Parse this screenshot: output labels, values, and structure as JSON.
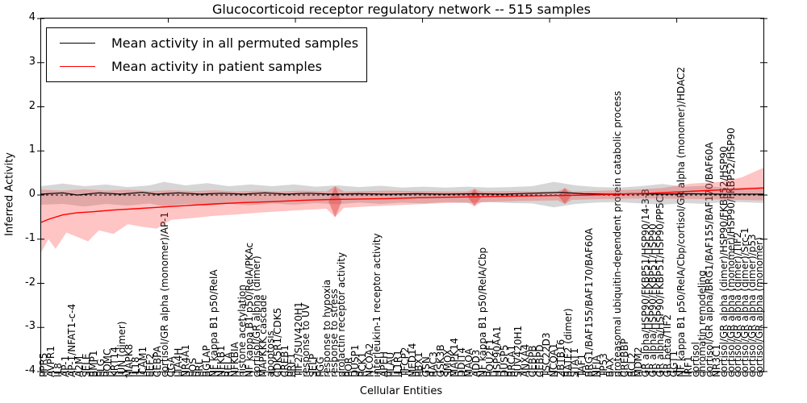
{
  "title": "Glucocorticoid receptor regulatory network -- 515 samples",
  "axes": {
    "ylabel": "Inferred Activity",
    "xlabel": "Cellular Entities",
    "yticks": [
      4,
      3,
      2,
      1,
      0,
      -1,
      -2,
      -3,
      -4
    ],
    "ylim": [
      -4,
      4
    ]
  },
  "legend": {
    "items": [
      {
        "label": "Mean activity in all permuted samples",
        "color": "#000000"
      },
      {
        "label": "Mean activity in patient samples",
        "color": "#ff0000"
      }
    ]
  },
  "colors": {
    "permuted_line": "#000000",
    "patient_line": "#ff0000",
    "permuted_band": "rgba(120,120,120,0.30)",
    "patient_band": "rgba(255,60,60,0.30)",
    "diamond": "rgba(225,60,60,0.45)",
    "zero_line": "#000000"
  },
  "chart_data": {
    "type": "line",
    "title": "Glucocorticoid receptor regulatory network -- 515 samples",
    "xlabel": "Cellular Entities",
    "ylabel": "Inferred Activity",
    "ylim": [
      -4,
      4
    ],
    "grid": false,
    "legend_position": "upper left",
    "categories": [
      "PPR5",
      "AVPR1",
      "IL8",
      "AP-1",
      "AP-1/NFAT1-c-4",
      "A2M",
      "SELE",
      "BMP1",
      "FLG",
      "POMC",
      "KRT14",
      "JUN (dimer)",
      "MAPK8",
      "IL18",
      "ICAM1",
      "EEF2",
      "CEBPA",
      "cortisol/GR alpha (monomer)/AP-1",
      "CGA",
      "LTA4H",
      "NR4A1",
      "FOS",
      "PRL",
      "BGLAP",
      "NF kappa B1 p50/RelA",
      "NFKB1",
      "RELA",
      "NFKBIA",
      "histone acetylation",
      "NF kappa B1 p50/RelA/PKAc",
      "cortisol/GR alpha (dimer)",
      "MAPKKK cascade",
      "apoptosis",
      "CDK5R1/CDK5",
      "CREB1",
      "PRF1",
      "TIF2/SUV420H1",
      "response to UV",
      "SELP",
      "FGG",
      "response to hypoxia",
      "response to stress",
      "prolactin receptor activity",
      "POR",
      "DUSP1",
      "PCK1",
      "NCOA2",
      "interleukin-1 receptor activity",
      "APEH",
      "PLAU",
      "IL1R1",
      "TFCP2",
      "MED14",
      "PBX1",
      "GSN",
      "RAC3",
      "GSK3B",
      "SMOX",
      "MAPK14",
      "DDIT4",
      "MAOA",
      "ADD3",
      "NF kappa B1 p50/RelA/Cbp",
      "POU2F1",
      "HSP90AA1",
      "DUSP5",
      "BRCA1",
      "SUV420H1",
      "ANXA4",
      "CEBPB",
      "CEBPD",
      "TSC22D3",
      "NCOA1",
      "ZBTB16",
      "BATF2 (dimer)",
      "STAT1",
      "TAF1",
      "BRG1/BAF155/BAF170/BAF60A",
      "NFIA",
      "TP53",
      "BAX",
      "proteasomal ubiquitin-dependent protein catabolic process",
      "CREBBP",
      "BCL2",
      "MDM2",
      "GR alpha/HSP90/FKBP51/HSP90/14-3-3",
      "GR alpha/HSP90/FKBP51/HSP90",
      "GR alpha/HSP90/FKBP51/HSP90/PP5C",
      "GR beta/TIF2",
      "GGT1",
      "NF kappa B1 p50/RelA/Cbp/cortisol/GR alpha (monomer)/HDAC2",
      "IRF1",
      "cortisol",
      "chromatin remodeling",
      "cortisol/GR alpha/BRG1/BAF155/BAF170/BAF60A",
      "NR3C1",
      "cortisol/GR alpha (dimer)/HSP90/FKBP52/HSP90",
      "cortisol/GR alpha (monomer)/HSP90/FKBP52/HSP90",
      "cortisol/GR alpha (dimer)/TIF2",
      "cortisol/GR alpha (dimer)/Src-1",
      "cortisol/GR alpha (dimer)/p53",
      "cortisol/GR alpha (monomer)"
    ],
    "series": [
      {
        "name": "Mean activity in all permuted samples",
        "color": "#000000",
        "points": [
          [
            0,
            0.02
          ],
          [
            0.03,
            0.05
          ],
          [
            0.05,
            0.0
          ],
          [
            0.08,
            0.05
          ],
          [
            0.11,
            0.02
          ],
          [
            0.14,
            0.06
          ],
          [
            0.16,
            0.02
          ],
          [
            0.19,
            0.05
          ],
          [
            0.22,
            0.02
          ],
          [
            0.25,
            0.04
          ],
          [
            0.28,
            0.02
          ],
          [
            0.31,
            0.05
          ],
          [
            0.34,
            0.02
          ],
          [
            0.37,
            0.04
          ],
          [
            0.4,
            0.02
          ],
          [
            0.44,
            0.03
          ],
          [
            0.48,
            0.02
          ],
          [
            0.52,
            0.03
          ],
          [
            0.56,
            0.02
          ],
          [
            0.6,
            0.03
          ],
          [
            0.64,
            0.02
          ],
          [
            0.68,
            0.04
          ],
          [
            0.72,
            0.06
          ],
          [
            0.75,
            0.03
          ],
          [
            0.78,
            0.02
          ],
          [
            0.82,
            0.03
          ],
          [
            0.86,
            0.02
          ],
          [
            0.9,
            0.03
          ],
          [
            0.94,
            0.02
          ],
          [
            1,
            0.02
          ]
        ]
      },
      {
        "name": "Mean activity in patient samples",
        "color": "#ff0000",
        "points": [
          [
            0,
            -0.62
          ],
          [
            0.01,
            -0.55
          ],
          [
            0.03,
            -0.45
          ],
          [
            0.05,
            -0.4
          ],
          [
            0.07,
            -0.38
          ],
          [
            0.1,
            -0.34
          ],
          [
            0.13,
            -0.31
          ],
          [
            0.16,
            -0.28
          ],
          [
            0.2,
            -0.24
          ],
          [
            0.24,
            -0.2
          ],
          [
            0.28,
            -0.17
          ],
          [
            0.32,
            -0.15
          ],
          [
            0.36,
            -0.12
          ],
          [
            0.4,
            -0.1
          ],
          [
            0.44,
            -0.09
          ],
          [
            0.48,
            -0.08
          ],
          [
            0.52,
            -0.06
          ],
          [
            0.56,
            -0.05
          ],
          [
            0.6,
            -0.04
          ],
          [
            0.64,
            -0.03
          ],
          [
            0.68,
            -0.02
          ],
          [
            0.72,
            -0.01
          ],
          [
            0.76,
            0.0
          ],
          [
            0.8,
            0.02
          ],
          [
            0.84,
            0.04
          ],
          [
            0.88,
            0.07
          ],
          [
            0.92,
            0.1
          ],
          [
            0.96,
            0.13
          ],
          [
            1,
            0.16
          ]
        ]
      }
    ],
    "bands": [
      {
        "name": "permuted-confidence-band",
        "color": "rgba(120,120,120,0.30)",
        "upper": [
          [
            0,
            0.2
          ],
          [
            0.03,
            0.26
          ],
          [
            0.06,
            0.2
          ],
          [
            0.09,
            0.24
          ],
          [
            0.12,
            0.18
          ],
          [
            0.15,
            0.22
          ],
          [
            0.17,
            0.3
          ],
          [
            0.2,
            0.22
          ],
          [
            0.23,
            0.27
          ],
          [
            0.26,
            0.2
          ],
          [
            0.29,
            0.24
          ],
          [
            0.32,
            0.2
          ],
          [
            0.35,
            0.24
          ],
          [
            0.38,
            0.19
          ],
          [
            0.41,
            0.22
          ],
          [
            0.44,
            0.18
          ],
          [
            0.47,
            0.21
          ],
          [
            0.5,
            0.17
          ],
          [
            0.53,
            0.19
          ],
          [
            0.56,
            0.17
          ],
          [
            0.59,
            0.19
          ],
          [
            0.62,
            0.17
          ],
          [
            0.65,
            0.18
          ],
          [
            0.68,
            0.2
          ],
          [
            0.71,
            0.3
          ],
          [
            0.74,
            0.22
          ],
          [
            0.77,
            0.18
          ],
          [
            0.8,
            0.17
          ],
          [
            0.83,
            0.2
          ],
          [
            0.86,
            0.25
          ],
          [
            0.89,
            0.19
          ],
          [
            0.92,
            0.21
          ],
          [
            0.95,
            0.16
          ],
          [
            1,
            0.18
          ]
        ],
        "lower": [
          [
            0,
            -0.22
          ],
          [
            0.03,
            -0.2
          ],
          [
            0.06,
            -0.26
          ],
          [
            0.09,
            -0.2
          ],
          [
            0.12,
            -0.24
          ],
          [
            0.15,
            -0.19
          ],
          [
            0.17,
            -0.26
          ],
          [
            0.2,
            -0.2
          ],
          [
            0.23,
            -0.24
          ],
          [
            0.26,
            -0.2
          ],
          [
            0.29,
            -0.23
          ],
          [
            0.32,
            -0.19
          ],
          [
            0.35,
            -0.22
          ],
          [
            0.38,
            -0.18
          ],
          [
            0.41,
            -0.21
          ],
          [
            0.44,
            -0.17
          ],
          [
            0.47,
            -0.2
          ],
          [
            0.5,
            -0.17
          ],
          [
            0.53,
            -0.19
          ],
          [
            0.56,
            -0.16
          ],
          [
            0.59,
            -0.18
          ],
          [
            0.62,
            -0.16
          ],
          [
            0.65,
            -0.18
          ],
          [
            0.68,
            -0.19
          ],
          [
            0.71,
            -0.28
          ],
          [
            0.74,
            -0.2
          ],
          [
            0.77,
            -0.17
          ],
          [
            0.8,
            -0.16
          ],
          [
            0.83,
            -0.19
          ],
          [
            0.86,
            -0.22
          ],
          [
            0.89,
            -0.18
          ],
          [
            0.92,
            -0.2
          ],
          [
            0.95,
            -0.15
          ],
          [
            1,
            -0.18
          ]
        ]
      },
      {
        "name": "patient-confidence-band",
        "color": "rgba(255,60,60,0.30)",
        "upper": [
          [
            0,
            0.12
          ],
          [
            0.03,
            0.1
          ],
          [
            0.06,
            0.13
          ],
          [
            0.09,
            0.1
          ],
          [
            0.12,
            0.12
          ],
          [
            0.15,
            0.09
          ],
          [
            0.18,
            0.11
          ],
          [
            0.21,
            0.09
          ],
          [
            0.24,
            0.11
          ],
          [
            0.27,
            0.08
          ],
          [
            0.3,
            0.1
          ],
          [
            0.33,
            0.08
          ],
          [
            0.36,
            0.1
          ],
          [
            0.395,
            0.08
          ],
          [
            0.407,
            0.2
          ],
          [
            0.419,
            0.08
          ],
          [
            0.45,
            0.09
          ],
          [
            0.48,
            0.1
          ],
          [
            0.52,
            0.09
          ],
          [
            0.56,
            0.08
          ],
          [
            0.59,
            0.08
          ],
          [
            0.6,
            0.14
          ],
          [
            0.61,
            0.08
          ],
          [
            0.65,
            0.09
          ],
          [
            0.68,
            0.08
          ],
          [
            0.715,
            0.08
          ],
          [
            0.725,
            0.16
          ],
          [
            0.735,
            0.08
          ],
          [
            0.78,
            0.1
          ],
          [
            0.82,
            0.12
          ],
          [
            0.86,
            0.16
          ],
          [
            0.9,
            0.26
          ],
          [
            0.94,
            0.3
          ],
          [
            0.97,
            0.4
          ],
          [
            1,
            0.62
          ]
        ],
        "lower": [
          [
            0,
            -1.3
          ],
          [
            0.01,
            -1.0
          ],
          [
            0.02,
            -1.22
          ],
          [
            0.035,
            -0.85
          ],
          [
            0.05,
            -0.95
          ],
          [
            0.065,
            -1.05
          ],
          [
            0.08,
            -0.8
          ],
          [
            0.1,
            -0.88
          ],
          [
            0.12,
            -0.66
          ],
          [
            0.14,
            -0.72
          ],
          [
            0.16,
            -0.76
          ],
          [
            0.18,
            -0.56
          ],
          [
            0.21,
            -0.52
          ],
          [
            0.24,
            -0.47
          ],
          [
            0.27,
            -0.44
          ],
          [
            0.3,
            -0.4
          ],
          [
            0.33,
            -0.37
          ],
          [
            0.36,
            -0.34
          ],
          [
            0.395,
            -0.31
          ],
          [
            0.407,
            -0.5
          ],
          [
            0.419,
            -0.29
          ],
          [
            0.45,
            -0.26
          ],
          [
            0.48,
            -0.24
          ],
          [
            0.52,
            -0.21
          ],
          [
            0.56,
            -0.18
          ],
          [
            0.59,
            -0.17
          ],
          [
            0.6,
            -0.25
          ],
          [
            0.61,
            -0.16
          ],
          [
            0.65,
            -0.14
          ],
          [
            0.68,
            -0.13
          ],
          [
            0.715,
            -0.12
          ],
          [
            0.725,
            -0.2
          ],
          [
            0.735,
            -0.11
          ],
          [
            0.78,
            -0.09
          ],
          [
            0.82,
            -0.08
          ],
          [
            0.86,
            -0.08
          ],
          [
            0.9,
            -0.09
          ],
          [
            0.94,
            -0.1
          ],
          [
            1,
            -0.12
          ]
        ]
      }
    ],
    "diamonds": [
      {
        "x": 0.407,
        "top": 0.2,
        "bottom": -0.5
      },
      {
        "x": 0.6,
        "top": 0.14,
        "bottom": -0.25
      },
      {
        "x": 0.725,
        "top": 0.16,
        "bottom": -0.2
      }
    ],
    "zero_line": true,
    "xticks_major": [
      0.176,
      0.352,
      0.528,
      0.704,
      0.88
    ]
  }
}
